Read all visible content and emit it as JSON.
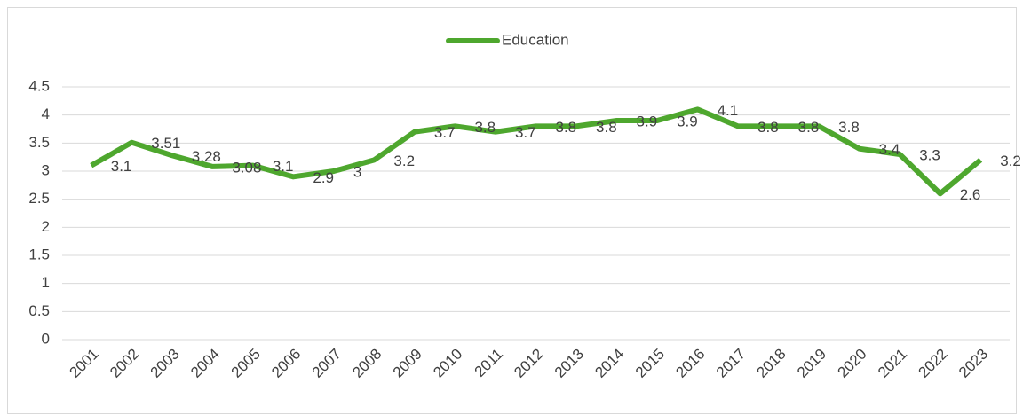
{
  "chart_data": {
    "type": "line",
    "categories": [
      "2001",
      "2002",
      "2003",
      "2004",
      "2005",
      "2006",
      "2007",
      "2008",
      "2009",
      "2010",
      "2011",
      "2012",
      "2013",
      "2014",
      "2015",
      "2016",
      "2017",
      "2018",
      "2019",
      "2020",
      "2021",
      "2022",
      "2023"
    ],
    "series": [
      {
        "name": "Education",
        "color": "#4ea72e",
        "values": [
          3.1,
          3.51,
          3.28,
          3.08,
          3.1,
          2.9,
          3,
          3.2,
          3.7,
          3.8,
          3.7,
          3.8,
          3.8,
          3.9,
          3.9,
          4.1,
          3.8,
          3.8,
          3.8,
          3.4,
          3.3,
          2.6,
          3.2
        ]
      }
    ],
    "ylim": [
      0,
      4.5
    ],
    "yticks": [
      0,
      0.5,
      1,
      1.5,
      2,
      2.5,
      3,
      3.5,
      4,
      4.5
    ],
    "grid": true,
    "legend": "top"
  }
}
